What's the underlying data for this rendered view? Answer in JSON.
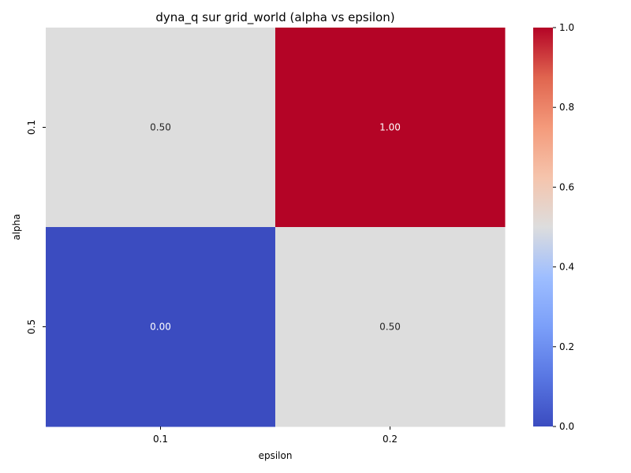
{
  "chart_data": {
    "type": "heatmap",
    "title": "dyna_q sur grid_world (alpha vs epsilon)",
    "xlabel": "epsilon",
    "ylabel": "alpha",
    "x_categories": [
      "0.1",
      "0.2"
    ],
    "y_categories": [
      "0.1",
      "0.5"
    ],
    "values": [
      [
        0.5,
        1.0
      ],
      [
        0.0,
        0.5
      ]
    ],
    "annotations": [
      [
        "0.50",
        "1.00"
      ],
      [
        "0.00",
        "0.50"
      ]
    ],
    "colormap": "coolwarm",
    "colorbar": {
      "range": [
        0,
        1
      ],
      "ticks": [
        0.0,
        0.2,
        0.4,
        0.6,
        0.8,
        1.0
      ],
      "tick_labels": [
        "0.0",
        "0.2",
        "0.4",
        "0.6",
        "0.8",
        "1.0"
      ]
    },
    "colors": {
      "low": "#3b4cc0",
      "mid": "#dddddd",
      "high": "#b40426"
    },
    "grid": false,
    "legend": "colorbar-right"
  }
}
